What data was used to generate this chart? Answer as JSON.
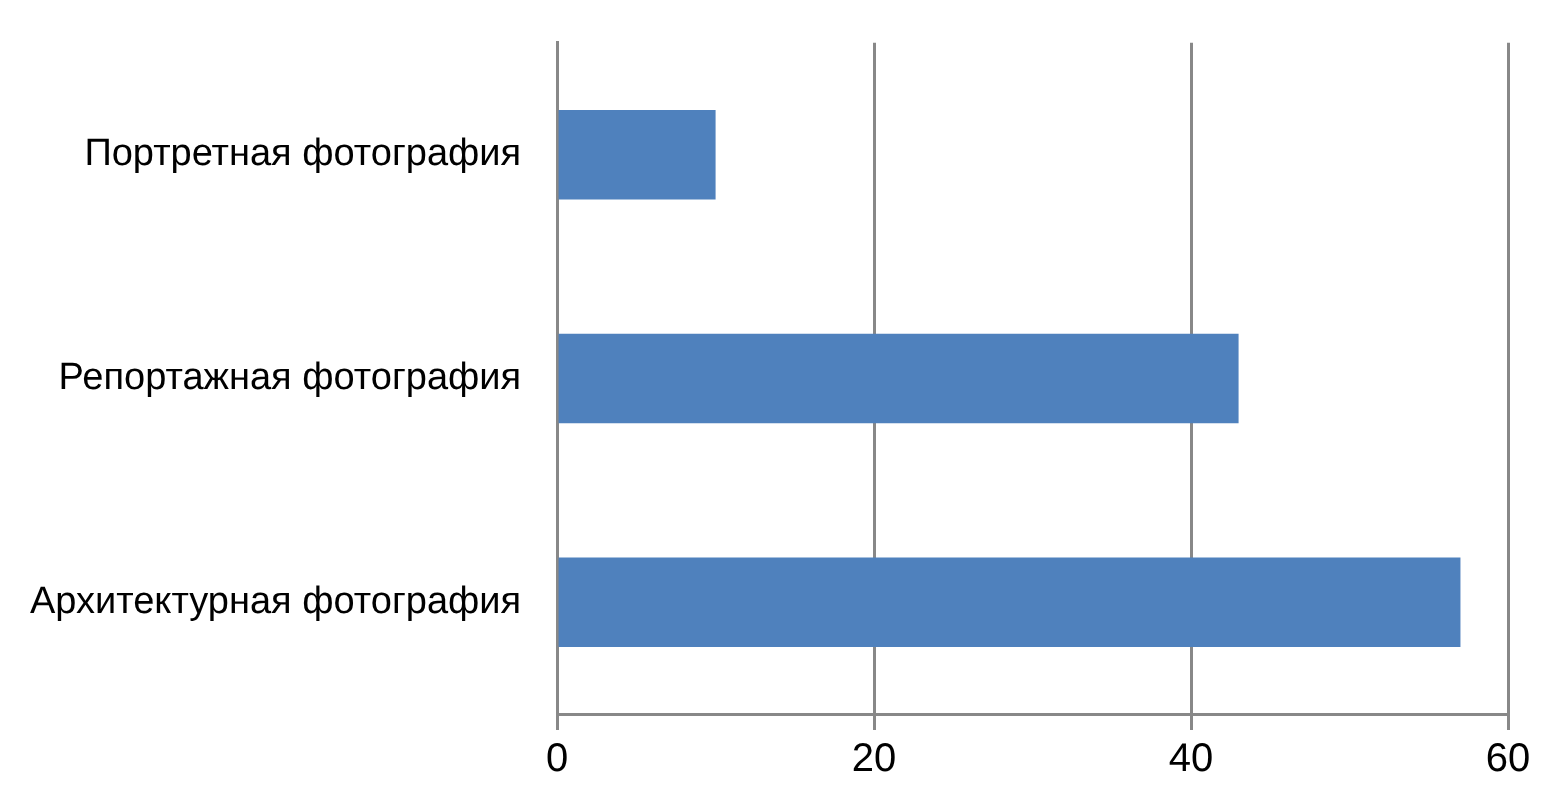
{
  "chart_data": {
    "type": "bar",
    "orientation": "horizontal",
    "categories": [
      "Портретная фотография",
      "Репортажная фотография",
      "Архитектурная фотография"
    ],
    "values": [
      10,
      43,
      57
    ],
    "color": "#4f81bd",
    "xlim": [
      0,
      60
    ],
    "xticks": [
      0,
      20,
      40,
      60
    ],
    "grid": "x",
    "legend": false
  }
}
